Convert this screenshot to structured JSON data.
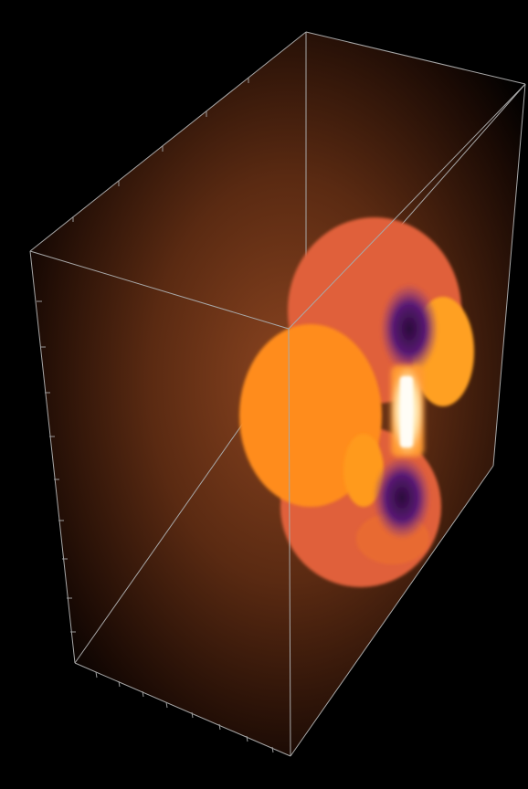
{
  "scene": {
    "kind": "3d-volume-render",
    "colors": {
      "background": "#000000",
      "glow_center": "#7a3a18",
      "glow_edge": "#000000",
      "box_edge": "#a8a8a8",
      "blob_outer": "#e8623a",
      "blob_mid": "#ff8c1a",
      "blob_bright": "#ffa020",
      "blob_dark": "#6a1e78",
      "blob_core": "#fff6e0"
    }
  }
}
